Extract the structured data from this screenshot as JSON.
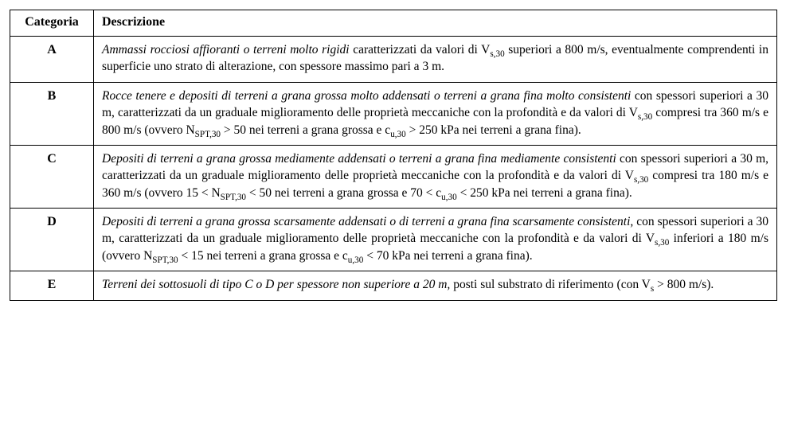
{
  "table": {
    "header": {
      "categoria": "Categoria",
      "descrizione": "Descrizione"
    },
    "rows": [
      {
        "id": "A",
        "lead": "Ammassi rocciosi affioranti o terreni molto rigidi",
        "body_html": " caratterizzati da valori di V<span class=\"sub\">s,30</span> superiori a 800 m/s, eventualmente comprendenti in superficie uno strato di alterazione, con spessore massimo pari a 3 m."
      },
      {
        "id": "B",
        "lead": "Rocce tenere e depositi di terreni a grana grossa molto addensati o terreni a grana fina molto consistenti",
        "body_html": " con spessori superiori a 30 m, caratterizzati da un graduale miglioramento delle proprietà meccaniche con la profondità e da valori di V<span class=\"sub\">s,30</span> compresi tra 360 m/s e 800 m/s (ovvero N<span class=\"sub\">SPT,30</span> &gt; 50 nei terreni a grana grossa e c<span class=\"sub\">u,30</span> &gt; 250 kPa nei terreni a grana fina)."
      },
      {
        "id": "C",
        "lead": "Depositi di terreni a grana grossa mediamente addensati o terreni a grana fina mediamente consistenti",
        "body_html": " con spessori superiori a 30 m, caratterizzati da un graduale miglioramento delle proprietà meccaniche con la profondità e da valori di V<span class=\"sub\">s,30</span> compresi tra 180 m/s e 360 m/s (ovvero 15 &lt; N<span class=\"sub\">SPT,30</span> &lt; 50 nei terreni a grana grossa e 70 &lt; c<span class=\"sub\">u,30</span> &lt; 250 kPa nei terreni a grana fina)."
      },
      {
        "id": "D",
        "lead": "Depositi di terreni a grana grossa scarsamente addensati o di terreni a grana fina scarsamente consistenti,",
        "body_html": " con spessori superiori a 30 m, caratterizzati da un graduale miglioramento delle proprietà meccaniche con la profondità e da valori di V<span class=\"sub\">s,30</span> inferiori a 180 m/s (ovvero N<span class=\"sub\">SPT,30</span> &lt; 15 nei terreni a grana grossa e c<span class=\"sub\">u,30</span> &lt; 70 kPa nei terreni a grana fina)."
      },
      {
        "id": "E",
        "lead": "Terreni dei sottosuoli di tipo C o D per spessore non superiore a 20 m,",
        "body_html": " posti sul substrato di riferimento (con V<span class=\"sub\">s</span> &gt; 800 m/s)."
      }
    ]
  },
  "style": {
    "font_family": "Times New Roman",
    "font_size_pt": 12,
    "border_color": "#000000",
    "background_color": "#ffffff",
    "text_color": "#000000"
  }
}
